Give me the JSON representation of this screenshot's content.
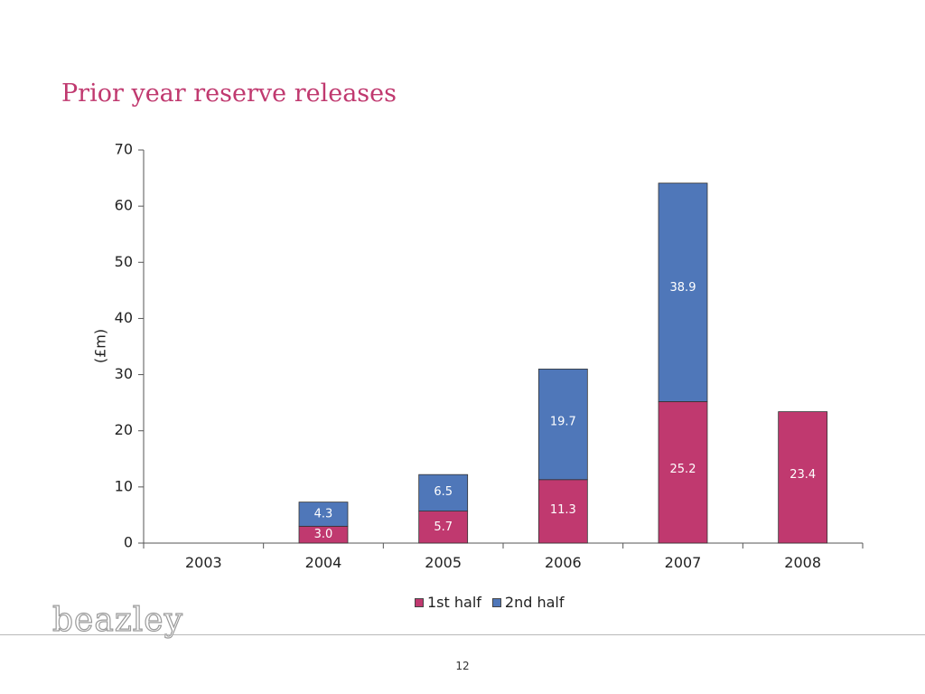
{
  "slide": {
    "title": "Prior year reserve releases",
    "title_color": "#c0396f",
    "logo_text": "beazley",
    "page_number": "12"
  },
  "chart_data": {
    "type": "bar",
    "stacked": true,
    "title": "",
    "xlabel": "",
    "ylabel": "(£m)",
    "ylim": [
      0,
      70
    ],
    "yticks": [
      0,
      10,
      20,
      30,
      40,
      50,
      60,
      70
    ],
    "categories": [
      "2003",
      "2004",
      "2005",
      "2006",
      "2007",
      "2008"
    ],
    "series": [
      {
        "name": "1st half",
        "color": "#c0396f",
        "values": [
          0,
          3.0,
          5.7,
          11.3,
          25.2,
          23.4
        ],
        "labels": [
          "",
          "3.0",
          "5.7",
          "11.3",
          "25.2",
          "23.4"
        ]
      },
      {
        "name": "2nd half",
        "color": "#4f77b9",
        "values": [
          0,
          4.3,
          6.5,
          19.7,
          38.9,
          0
        ],
        "labels": [
          "",
          "4.3",
          "6.5",
          "19.7",
          "38.9",
          ""
        ]
      }
    ],
    "grid": false,
    "legend": "bottom"
  }
}
